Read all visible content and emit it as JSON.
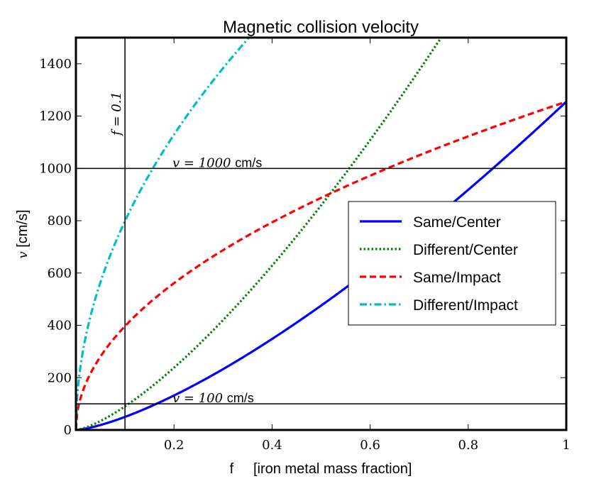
{
  "chart_data": {
    "type": "line",
    "title": "Magnetic collision velocity",
    "xlabel": "f     [iron metal mass fraction]",
    "ylabel_var": "v",
    "ylabel_unit": " [cm/s]",
    "xlim": [
      0,
      1
    ],
    "ylim": [
      0,
      1500
    ],
    "xticks": [
      0.2,
      0.4,
      0.6,
      0.8,
      1
    ],
    "xtick_labels": [
      "0.2",
      "0.4",
      "0.6",
      "0.8",
      "1"
    ],
    "yticks": [
      0,
      200,
      400,
      600,
      800,
      1000,
      1200,
      1400
    ],
    "ytick_labels": [
      "0",
      "200",
      "400",
      "600",
      "800",
      "1000",
      "1200",
      "1400"
    ],
    "grid": false,
    "legend_position": "center-right",
    "series": [
      {
        "name": "Same/Center",
        "color": "#0000ff",
        "dash": "solid",
        "scale": 1255,
        "exponent": 1.4
      },
      {
        "name": "Different/Center",
        "color": "#008000",
        "dash": "dotted",
        "scale": 2266,
        "exponent": 1.4
      },
      {
        "name": "Same/Impact",
        "color": "#ff0000",
        "dash": "dashed",
        "scale": 1255,
        "exponent": 0.5
      },
      {
        "name": "Different/Impact",
        "color": "#00bfbf",
        "dash": "dashdot",
        "scale": 2525,
        "exponent": 0.5
      }
    ],
    "reference_lines": {
      "horizontal": [
        {
          "y": 1000,
          "label_var": "v = 1000",
          "label_unit": "cm/s"
        },
        {
          "y": 100,
          "label_var": "v = 100",
          "label_unit": "cm/s"
        }
      ],
      "vertical": [
        {
          "x": 0.1,
          "label": "f = 0.1"
        }
      ]
    }
  }
}
